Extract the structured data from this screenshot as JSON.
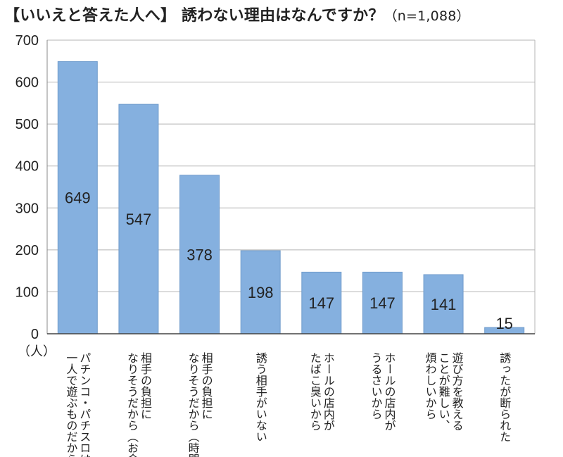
{
  "title": "【いいえと答えた人へ】 誘わない理由はなんですか？",
  "sample_note": "（n=1,088）",
  "y_unit": "（人）",
  "colors": {
    "bar": "#85b0df",
    "bar_stroke": "#6f9bcb",
    "grid": "#b5b5b5"
  },
  "chart_data": {
    "type": "bar",
    "title": "【いいえと答えた人へ】 誘わない理由はなんですか？（n=1,088）",
    "xlabel": "",
    "ylabel": "（人）",
    "ylim": [
      0,
      700
    ],
    "yticks": [
      0,
      100,
      200,
      300,
      400,
      500,
      600,
      700
    ],
    "grid": true,
    "categories": [
      [
        "パチンコ・パチスロは",
        "一人で遊ぶものだから"
      ],
      [
        "相手の負担に",
        "なりそうだから（お金）"
      ],
      [
        "相手の負担に",
        "なりそうだから（時間）"
      ],
      [
        "誘う相手がいない"
      ],
      [
        "ホールの店内が",
        "たばこ臭いから"
      ],
      [
        "ホールの店内が",
        "うるさいから"
      ],
      [
        "遊び方を教える",
        "ことが難しい、",
        "煩わしいから"
      ],
      [
        "誘ったが断られた"
      ]
    ],
    "values": [
      649,
      547,
      378,
      198,
      147,
      147,
      141,
      15
    ]
  }
}
